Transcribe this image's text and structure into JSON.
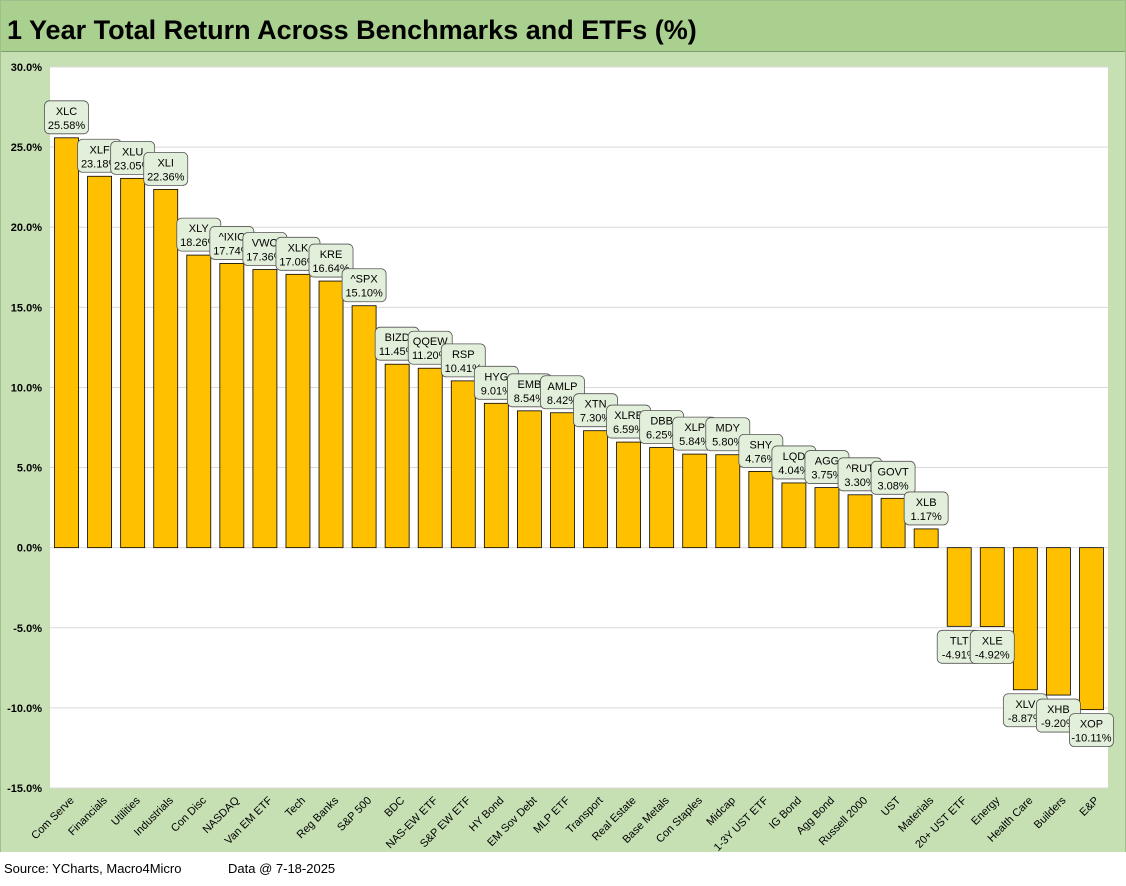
{
  "title": "1 Year Total Return Across Benchmarks and ETFs (%)",
  "footer": {
    "source": "Source: YCharts, Macro4Micro",
    "date": "Data @ 7-18-2025"
  },
  "colors": {
    "bar": "#ffc000",
    "bar_edge": "#000000",
    "plot_bg": "#ffffff",
    "frame_bg": "#c6e0b4",
    "title_bg": "#a9d08e",
    "label_bg": "#e2efda",
    "grid": "#d9d9d9"
  },
  "chart_data": {
    "type": "bar",
    "title": "1 Year Total Return Across Benchmarks and ETFs (%)",
    "xlabel": "",
    "ylabel": "",
    "ylim": [
      -15,
      30
    ],
    "yticks": [
      "-15.0%",
      "-10.0%",
      "-5.0%",
      "0.0%",
      "5.0%",
      "10.0%",
      "15.0%",
      "20.0%",
      "25.0%",
      "30.0%"
    ],
    "grid": true,
    "categories": [
      "Com Serve",
      "Financials",
      "Utilities",
      "Industrials",
      "Con Disc",
      "NASDAQ",
      "Van EM ETF",
      "Tech",
      "Reg Banks",
      "S&P 500",
      "BDC",
      "NAS-EW ETF",
      "S&P EW ETF",
      "HY Bond",
      "EM Sov Debt",
      "MLP ETF",
      "Transport",
      "Real Estate",
      "Base Metals",
      "Con Staples",
      "Midcap",
      "1-3Y UST ETF",
      "IG Bond",
      "Agg Bond",
      "Russell 2000",
      "UST",
      "Materials",
      "20+ UST ETF",
      "Energy",
      "Health Care",
      "Builders",
      "E&P"
    ],
    "tickers": [
      "XLC",
      "XLF",
      "XLU",
      "XLI",
      "XLY",
      "^IXIC",
      "VWO",
      "XLK",
      "KRE",
      "^SPX",
      "BIZD",
      "QQEW",
      "RSP",
      "HYG",
      "EMB",
      "AMLP",
      "XTN",
      "XLRE",
      "DBB",
      "XLP",
      "MDY",
      "SHY",
      "LQD",
      "AGG",
      "^RUT",
      "GOVT",
      "XLB",
      "TLT",
      "XLE",
      "XLV",
      "XHB",
      "XOP"
    ],
    "values": [
      25.58,
      23.18,
      23.05,
      22.36,
      18.26,
      17.74,
      17.36,
      17.06,
      16.64,
      15.1,
      11.45,
      11.2,
      10.41,
      9.01,
      8.54,
      8.42,
      7.3,
      6.59,
      6.25,
      5.84,
      5.8,
      4.76,
      4.04,
      3.75,
      3.3,
      3.08,
      1.17,
      -4.91,
      -4.92,
      -8.87,
      -9.2,
      -10.11
    ],
    "data_labels": [
      "25.58%",
      "23.18%",
      "23.05%",
      "22.36%",
      "18.26%",
      "17.74%",
      "17.36%",
      "17.06%",
      "16.64%",
      "15.10%",
      "11.45%",
      "11.20%",
      "10.41%",
      "9.01%",
      "8.54%",
      "8.42%",
      "7.30%",
      "6.59%",
      "6.25%",
      "5.84%",
      "5.80%",
      "4.76%",
      "4.04%",
      "3.75%",
      "3.30%",
      "3.08%",
      "1.17%",
      "-4.91%",
      "-4.92%",
      "-8.87%",
      "-9.20%",
      "-10.11%"
    ]
  }
}
